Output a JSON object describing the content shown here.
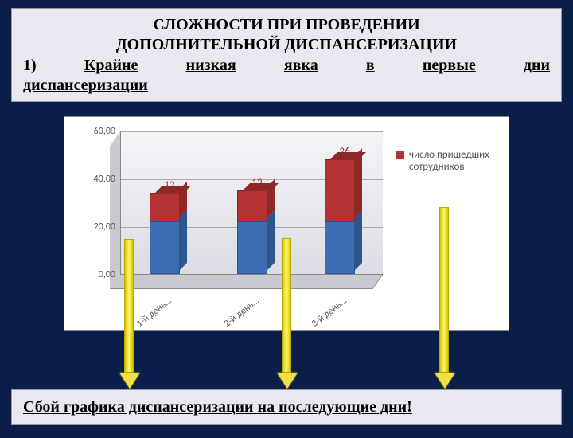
{
  "header": {
    "title_line1": "СЛОЖНОСТИ ПРИ ПРОВЕДЕНИИ",
    "title_line2": "ДОПОЛНИТЕЛЬНОЙ ДИСПАНСЕРИЗАЦИИ",
    "subtitle_num": "1)",
    "subtitle_w1": "Крайне",
    "subtitle_w2": "низкая",
    "subtitle_w3": "явка",
    "subtitle_w4": "в",
    "subtitle_w5": "первые",
    "subtitle_w6": "дни",
    "subtitle_line2": "диспансеризации"
  },
  "chart": {
    "type": "stacked-bar-3d",
    "ylim": [
      0,
      60
    ],
    "ytick_step": 20,
    "yticks": [
      "0,00",
      "20,00",
      "40,00",
      "60,00"
    ],
    "categories": [
      "1-й день…",
      "2-й день…",
      "3-й день…"
    ],
    "blue_values": [
      22,
      22,
      22
    ],
    "red_values": [
      12,
      13,
      26
    ],
    "red_labels": [
      "12",
      "13",
      "26"
    ],
    "colors": {
      "blue": "#3b6db3",
      "blue_dark": "#2d5590",
      "red": "#b33333",
      "red_dark": "#902828",
      "label_red": "#9c2b2b"
    },
    "legend_label": "число пришедших сотрудников",
    "background_color": "#ffffff",
    "grid_color": "#aaaaaa"
  },
  "footer": {
    "text": "Сбой графика диспансеризации на последующие дни!"
  }
}
